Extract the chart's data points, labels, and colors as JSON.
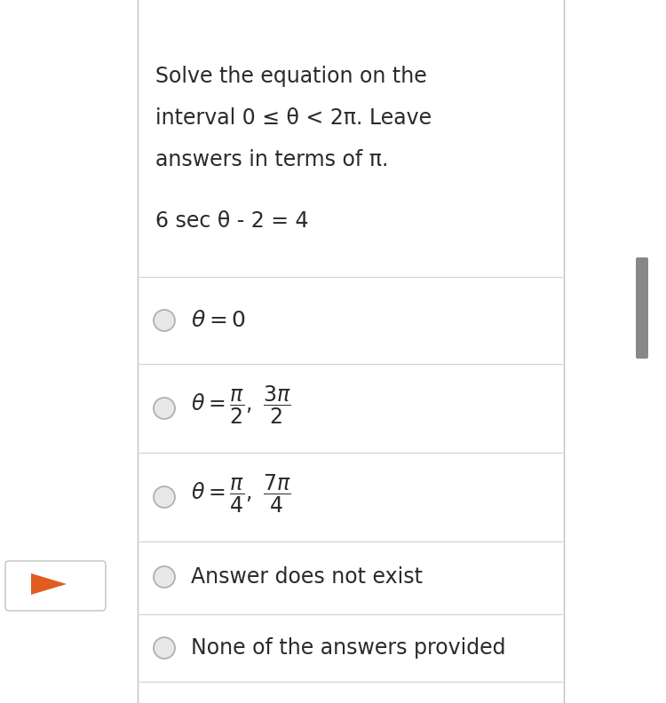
{
  "background_color": "#ffffff",
  "border_left_color": "#c0c0c0",
  "border_right_color": "#c0c0c0",
  "question_lines": [
    "Solve the equation on the",
    "interval 0 ≤ θ < 2π. Leave",
    "answers in terms of π."
  ],
  "equation": "6 sec θ - 2 = 4",
  "divider_color": "#d0d0d0",
  "text_color": "#2a2a2a",
  "circle_edge_color": "#b0b0b0",
  "circle_face_color": "#e8e8e8",
  "scrollbar_color": "#888888",
  "play_bg_color": "#ffffff",
  "play_triangle_color": "#e05c20",
  "font_size_question": 17,
  "font_size_equation": 17,
  "font_size_option_text": 17,
  "font_size_option_math": 15
}
